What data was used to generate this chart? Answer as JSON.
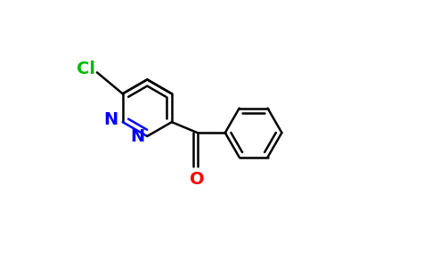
{
  "background_color": "#ffffff",
  "bond_color": "#000000",
  "nitrogen_color": "#0000ff",
  "oxygen_color": "#ff0000",
  "chlorine_color": "#00bb00",
  "line_width": 1.8,
  "figsize": [
    4.84,
    3.0
  ],
  "dpi": 100,
  "xlim": [
    0,
    10
  ],
  "ylim": [
    0,
    6.2
  ]
}
